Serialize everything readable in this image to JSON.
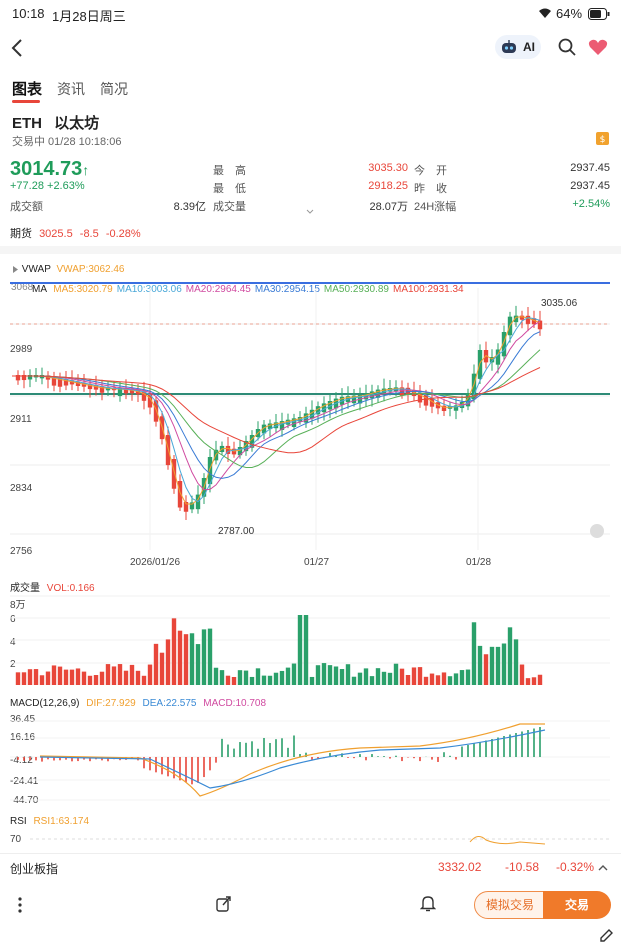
{
  "status": {
    "time": "10:18",
    "date": "1月28日周三",
    "battery": "64%"
  },
  "nav": {
    "ai_label": "AI"
  },
  "tabs": [
    {
      "label": "图表"
    },
    {
      "label": "资讯"
    },
    {
      "label": "简况"
    }
  ],
  "quote": {
    "symbol": "ETH",
    "name": "以太坊",
    "status_line": "交易中 01/28 10:18:06",
    "price": "3014.73",
    "change": "+77.28",
    "change_pct": "+2.63%",
    "turnover_label": "成交额",
    "turnover": "8.39亿",
    "high_label": "最　高",
    "high": "3035.30",
    "low_label": "最　低",
    "low": "2918.25",
    "volume_label": "成交量",
    "volume": "28.07万",
    "open_label": "今　开",
    "open": "2937.45",
    "prev_label": "昨　收",
    "prev": "2937.45",
    "chg24_label": "24H涨幅",
    "chg24": "+2.54%"
  },
  "futures": {
    "label": "期货",
    "price": "3025.5",
    "change": "-8.5",
    "change_pct": "-0.28%"
  },
  "chart": {
    "vwap_label": "VWAP",
    "vwap_value": "VWAP:3062.46",
    "vwap_axis": "3068",
    "ma_label": "MA",
    "ma": [
      {
        "text": "MA5:3020.79",
        "color": "#f0a030"
      },
      {
        "text": "MA10:3003.06",
        "color": "#4aa8d8"
      },
      {
        "text": "MA20:2964.45",
        "color": "#d04aa0"
      },
      {
        "text": "MA30:2954.15",
        "color": "#3a7bd5"
      },
      {
        "text": "MA50:2930.89",
        "color": "#58b058"
      },
      {
        "text": "MA100:2931.34",
        "color": "#e8463a"
      }
    ],
    "y_labels": [
      "2989",
      "2911",
      "2834",
      "2756"
    ],
    "x_labels": [
      "2026/01/26",
      "01/27",
      "01/28"
    ],
    "max_label": "3035.06",
    "min_label": "2787.00",
    "volume_title": "成交量",
    "volume_value": "VOL:0.166",
    "volume_axis": [
      "8万",
      "6",
      "4",
      "2"
    ],
    "macd_title": "MACD(12,26,9)",
    "macd_dif": "DIF:27.929",
    "macd_dea": "DEA:22.575",
    "macd_val": "MACD:10.708",
    "macd_axis": [
      "36.45",
      "16.16",
      "-4.12",
      "-24.41",
      "-44.70"
    ],
    "rsi_title": "RSI",
    "rsi_value": "RSI1:63.174",
    "rsi_axis": "70"
  },
  "ticker": {
    "name": "创业板指",
    "value": "3332.02",
    "change": "-10.58",
    "pct": "-0.32%"
  },
  "actions": {
    "sim_label": "模拟交易",
    "trade_label": "交易"
  }
}
